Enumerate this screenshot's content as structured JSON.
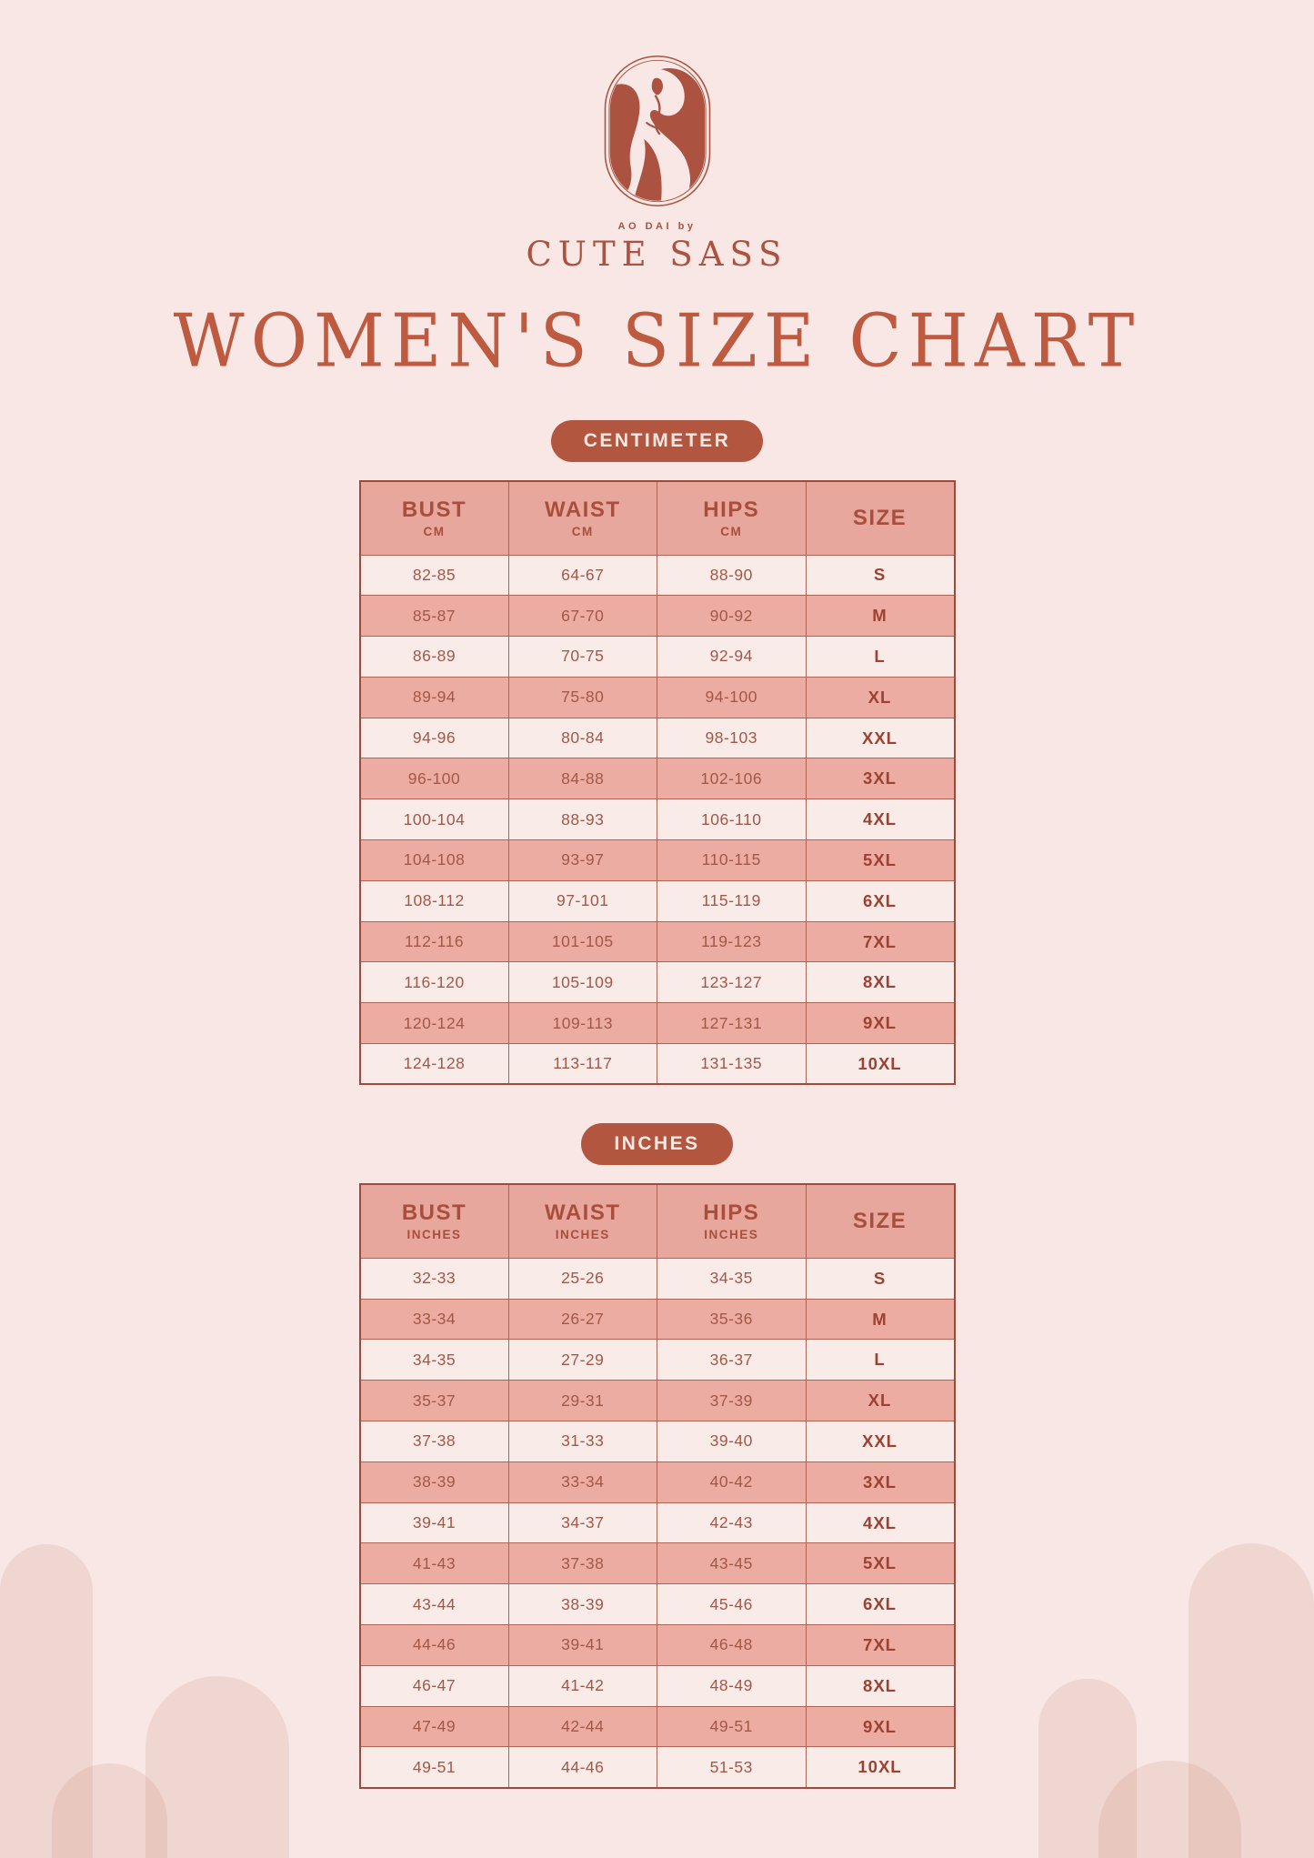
{
  "brand": {
    "pretitle": "AO DAI by",
    "name": "CUTE SASS",
    "logo_icon": "woman-in-ao-dai-capsule-icon"
  },
  "title": "WOMEN'S SIZE CHART",
  "colors": {
    "background": "#f8e7e4",
    "accent_terracotta": "#b35640",
    "title_text": "#bd5a40",
    "table_header_bg": "#e8a79c",
    "row_light_bg": "#f9ebe8",
    "row_alt_bg": "#ecaca1",
    "cell_text": "#a25847",
    "size_text": "#9d4232",
    "table_border": "#9c4a3b",
    "badge_text": "#f8e9e4",
    "arch_decor": "#f3d6d2"
  },
  "sections": [
    {
      "badge": "CENTIMETER",
      "columns": [
        {
          "label": "BUST",
          "unit": "CM"
        },
        {
          "label": "WAIST",
          "unit": "CM"
        },
        {
          "label": "HIPS",
          "unit": "CM"
        },
        {
          "label": "SIZE",
          "unit": ""
        }
      ],
      "rows": [
        [
          "82-85",
          "64-67",
          "88-90",
          "S"
        ],
        [
          "85-87",
          "67-70",
          "90-92",
          "M"
        ],
        [
          "86-89",
          "70-75",
          "92-94",
          "L"
        ],
        [
          "89-94",
          "75-80",
          "94-100",
          "XL"
        ],
        [
          "94-96",
          "80-84",
          "98-103",
          "XXL"
        ],
        [
          "96-100",
          "84-88",
          "102-106",
          "3XL"
        ],
        [
          "100-104",
          "88-93",
          "106-110",
          "4XL"
        ],
        [
          "104-108",
          "93-97",
          "110-115",
          "5XL"
        ],
        [
          "108-112",
          "97-101",
          "115-119",
          "6XL"
        ],
        [
          "112-116",
          "101-105",
          "119-123",
          "7XL"
        ],
        [
          "116-120",
          "105-109",
          "123-127",
          "8XL"
        ],
        [
          "120-124",
          "109-113",
          "127-131",
          "9XL"
        ],
        [
          "124-128",
          "113-117",
          "131-135",
          "10XL"
        ]
      ]
    },
    {
      "badge": "INCHES",
      "columns": [
        {
          "label": "BUST",
          "unit": "INCHES"
        },
        {
          "label": "WAIST",
          "unit": "INCHES"
        },
        {
          "label": "HIPS",
          "unit": "INCHES"
        },
        {
          "label": "SIZE",
          "unit": ""
        }
      ],
      "rows": [
        [
          "32-33",
          "25-26",
          "34-35",
          "S"
        ],
        [
          "33-34",
          "26-27",
          "35-36",
          "M"
        ],
        [
          "34-35",
          "27-29",
          "36-37",
          "L"
        ],
        [
          "35-37",
          "29-31",
          "37-39",
          "XL"
        ],
        [
          "37-38",
          "31-33",
          "39-40",
          "XXL"
        ],
        [
          "38-39",
          "33-34",
          "40-42",
          "3XL"
        ],
        [
          "39-41",
          "34-37",
          "42-43",
          "4XL"
        ],
        [
          "41-43",
          "37-38",
          "43-45",
          "5XL"
        ],
        [
          "43-44",
          "38-39",
          "45-46",
          "6XL"
        ],
        [
          "44-46",
          "39-41",
          "46-48",
          "7XL"
        ],
        [
          "46-47",
          "41-42",
          "48-49",
          "8XL"
        ],
        [
          "47-49",
          "42-44",
          "49-51",
          "9XL"
        ],
        [
          "49-51",
          "44-46",
          "51-53",
          "10XL"
        ]
      ]
    }
  ]
}
